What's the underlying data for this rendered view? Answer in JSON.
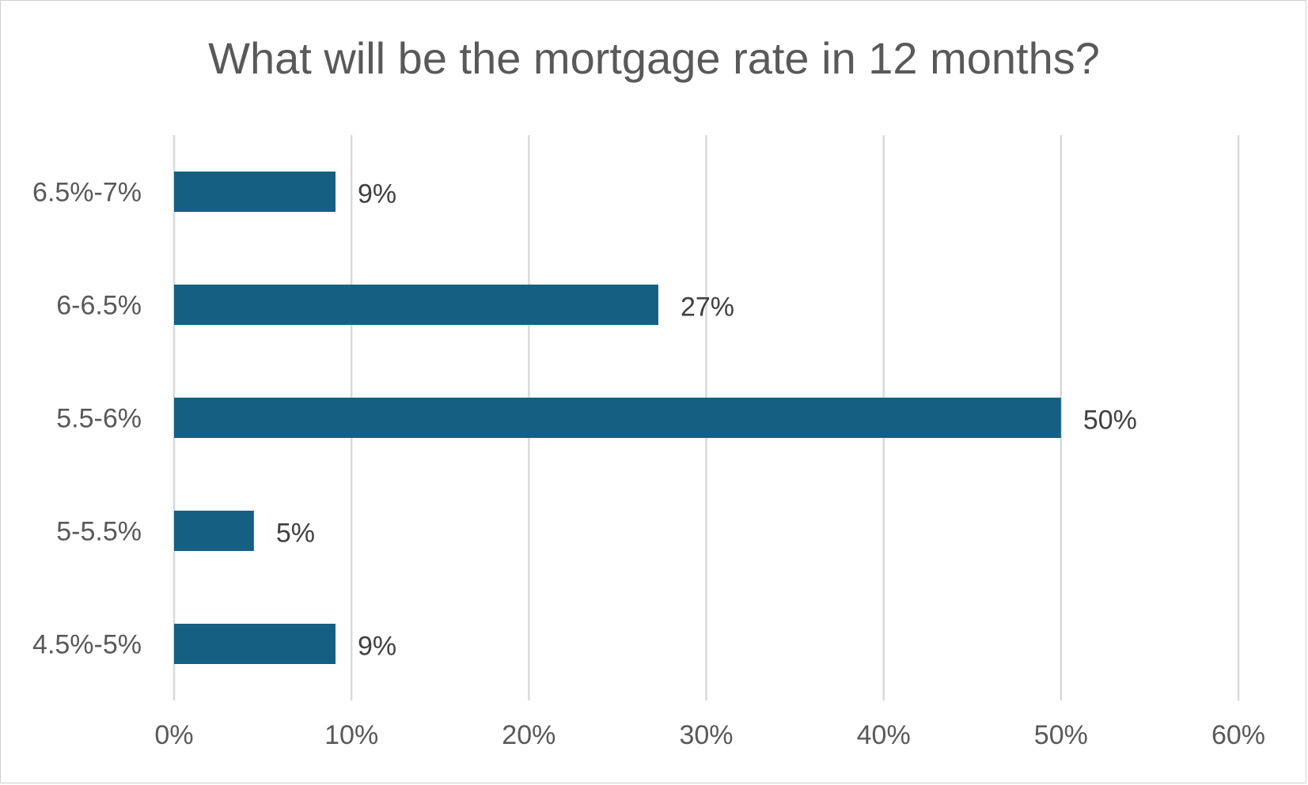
{
  "chart_data": {
    "type": "bar",
    "orientation": "horizontal",
    "title": "What will be the mortgage rate in 12 months?",
    "categories": [
      "6.5%-7%",
      "6-6.5%",
      "5.5-6%",
      "5-5.5%",
      "4.5%-5%"
    ],
    "values": [
      9.1,
      27.3,
      50.0,
      4.5,
      9.1
    ],
    "data_labels": [
      "9%",
      "27%",
      "50%",
      "5%",
      "9%"
    ],
    "xlim": [
      0,
      60
    ],
    "x_ticks": [
      0,
      10,
      20,
      30,
      40,
      50,
      60
    ],
    "x_tick_labels": [
      "0%",
      "10%",
      "20%",
      "30%",
      "40%",
      "50%",
      "60%"
    ],
    "grid": "vertical",
    "legend": "none",
    "bar_color": "#156082",
    "gridline_color": "#d9d9d9",
    "text_color": "#595959",
    "label_color": "#404040"
  }
}
